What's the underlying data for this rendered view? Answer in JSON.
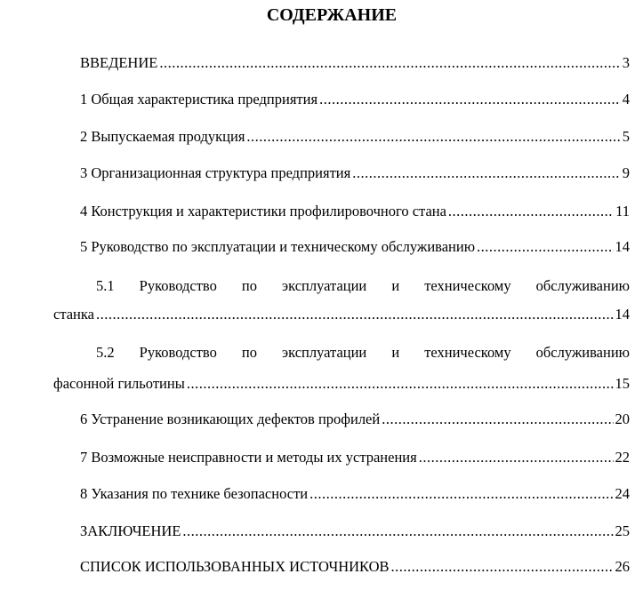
{
  "title": "СОДЕРЖАНИЕ",
  "entries": [
    {
      "label": "ВВЕДЕНИЕ",
      "page": "3"
    },
    {
      "label": "1 Общая характеристика предприятия",
      "page": "4"
    },
    {
      "label": "2 Выпускаемая продукция",
      "page": "5"
    },
    {
      "label": "3 Организационная структура предприятия",
      "page": "9"
    },
    {
      "label": "4 Конструкция и характеристики профилировочного стана",
      "page": "11"
    },
    {
      "label": "5 Руководство по эксплуатации и техническому обслуживанию",
      "page": "14"
    },
    {
      "label_line1": "5.1 Руководство по эксплуатации и техническому обслуживанию",
      "label_line2": "станка",
      "page": "14"
    },
    {
      "label_line1": "5.2 Руководство по эксплуатации и техническому обслуживанию",
      "label_line2": "фасонной гильотины",
      "page": "15"
    },
    {
      "label": "6 Устранение возникающих дефектов профилей",
      "page": "20"
    },
    {
      "label": "7 Возможные неисправности и методы их устранения",
      "page": "22"
    },
    {
      "label": "8 Указания по технике безопасности",
      "page": "24"
    },
    {
      "label": "ЗАКЛЮЧЕНИЕ",
      "page": "25"
    },
    {
      "label": "СПИСОК ИСПОЛЬЗОВАННЫХ ИСТОЧНИКОВ",
      "page": "26"
    }
  ]
}
